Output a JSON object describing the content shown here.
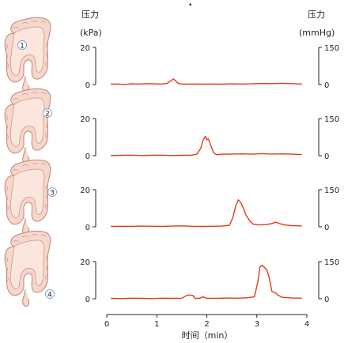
{
  "chart_data": {
    "type": "line",
    "left_axis": {
      "title": "压力",
      "unit": "(kPa)",
      "ticks": [
        0,
        20
      ],
      "range": [
        0,
        20
      ]
    },
    "right_axis": {
      "title": "压力",
      "unit": "(mmHg)",
      "ticks": [
        0,
        150
      ],
      "range": [
        0,
        150
      ]
    },
    "xlabel": "时间（min）",
    "xlim": [
      0,
      4
    ],
    "xticks": [
      0,
      1,
      2,
      3,
      4
    ],
    "line_color": "#e03a1c",
    "panels": [
      {
        "sensor_label": "1",
        "x": [
          0.08,
          0.2,
          0.35,
          0.5,
          0.65,
          0.8,
          0.95,
          1.1,
          1.2,
          1.28,
          1.33,
          1.38,
          1.43,
          1.5,
          1.58,
          1.75,
          1.95,
          2.1,
          2.3,
          2.5,
          2.7,
          2.9,
          3.1,
          3.3,
          3.5,
          3.7,
          3.9
        ],
        "y": [
          0.2,
          0.3,
          0.1,
          0.4,
          0.3,
          0.5,
          0.4,
          0.3,
          0.6,
          2.0,
          3.0,
          2.0,
          0.6,
          0.3,
          0.2,
          0.3,
          0.2,
          0.3,
          0.2,
          0.4,
          0.3,
          0.4,
          0.6,
          0.5,
          0.7,
          0.5,
          0.3
        ]
      },
      {
        "sensor_label": "2",
        "x": [
          0.08,
          0.3,
          0.5,
          0.7,
          0.9,
          1.1,
          1.3,
          1.5,
          1.7,
          1.8,
          1.88,
          1.92,
          1.97,
          2.0,
          2.03,
          2.06,
          2.1,
          2.14,
          2.2,
          2.3,
          2.5,
          2.7,
          2.9,
          3.1,
          3.3,
          3.5,
          3.7,
          3.9
        ],
        "y": [
          0.1,
          0.2,
          0.3,
          0.1,
          0.2,
          0.3,
          0.1,
          0.2,
          0.3,
          0.8,
          4.0,
          8.0,
          10.5,
          8.5,
          9.0,
          7.0,
          4.0,
          1.5,
          0.5,
          0.8,
          0.9,
          1.0,
          0.8,
          1.1,
          0.9,
          1.0,
          0.8,
          0.6
        ]
      },
      {
        "sensor_label": "3",
        "x": [
          0.08,
          0.3,
          0.5,
          0.7,
          0.9,
          1.1,
          1.3,
          1.5,
          1.7,
          1.9,
          2.1,
          2.3,
          2.45,
          2.52,
          2.58,
          2.63,
          2.68,
          2.73,
          2.78,
          2.85,
          2.92,
          3.05,
          3.2,
          3.3,
          3.38,
          3.45,
          3.55,
          3.7,
          3.9
        ],
        "y": [
          0.2,
          0.3,
          0.2,
          0.4,
          0.3,
          0.2,
          0.4,
          0.5,
          0.3,
          0.2,
          0.3,
          0.4,
          0.8,
          5.0,
          11.5,
          14.5,
          13.0,
          10.0,
          6.5,
          3.5,
          1.5,
          1.0,
          1.2,
          1.8,
          2.5,
          1.8,
          1.0,
          0.6,
          0.5
        ]
      },
      {
        "sensor_label": "4",
        "x": [
          0.08,
          0.3,
          0.5,
          0.7,
          0.9,
          1.1,
          1.3,
          1.5,
          1.6,
          1.65,
          1.72,
          1.76,
          1.85,
          1.92,
          2.0,
          2.2,
          2.4,
          2.6,
          2.8,
          2.95,
          3.02,
          3.06,
          3.1,
          3.15,
          3.2,
          3.25,
          3.3,
          3.34,
          3.38,
          3.42,
          3.5,
          3.7,
          3.9
        ],
        "y": [
          0.2,
          0.1,
          0.3,
          0.2,
          0.1,
          0.3,
          0.2,
          0.3,
          1.8,
          2.0,
          1.8,
          0.3,
          0.2,
          1.0,
          0.3,
          0.2,
          0.4,
          0.3,
          0.5,
          1.0,
          9.0,
          17.0,
          18.0,
          17.0,
          15.5,
          11.0,
          4.0,
          3.5,
          3.0,
          2.0,
          0.8,
          0.4,
          0.3
        ]
      }
    ]
  }
}
